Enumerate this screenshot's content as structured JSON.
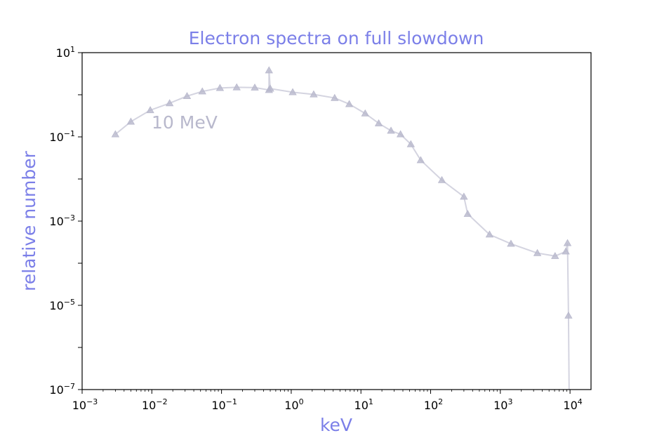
{
  "chart_data": {
    "type": "line",
    "title": "Electron spectra on full slowdown",
    "xlabel": "keV",
    "ylabel": "relative number",
    "xscale": "log",
    "yscale": "log",
    "xlim": [
      0.001,
      20000
    ],
    "ylim": [
      1e-07,
      10
    ],
    "grid": false,
    "marker": "triangle",
    "color": "#b8b8cc",
    "annotation": "10 MeV",
    "x_ticks": [
      {
        "base": "10",
        "exp": "−3",
        "value": 0.001
      },
      {
        "base": "10",
        "exp": "−2",
        "value": 0.01
      },
      {
        "base": "10",
        "exp": "−1",
        "value": 0.1
      },
      {
        "base": "10",
        "exp": "0",
        "value": 1
      },
      {
        "base": "10",
        "exp": "1",
        "value": 10
      },
      {
        "base": "10",
        "exp": "2",
        "value": 100
      },
      {
        "base": "10",
        "exp": "3",
        "value": 1000
      },
      {
        "base": "10",
        "exp": "4",
        "value": 10000
      }
    ],
    "y_ticks": [
      {
        "base": "10",
        "exp": "1",
        "value": 10
      },
      {
        "base": "10",
        "exp": "−1",
        "value": 0.1
      },
      {
        "base": "10",
        "exp": "−3",
        "value": 0.001
      },
      {
        "base": "10",
        "exp": "−5",
        "value": 1e-05
      },
      {
        "base": "10",
        "exp": "−7",
        "value": 1e-07
      }
    ],
    "series": [
      {
        "x": [
          0.003,
          0.005,
          0.0095,
          0.018,
          0.032,
          0.053,
          0.095,
          0.165,
          0.3,
          0.48,
          0.48,
          0.5,
          1.05,
          2.1,
          4.2,
          6.8,
          11.5,
          18,
          27,
          37,
          52,
          72,
          145,
          300,
          340,
          700,
          1420,
          3400,
          6100,
          8700,
          9200,
          9500,
          9700
        ],
        "y": [
          0.115,
          0.23,
          0.43,
          0.63,
          0.93,
          1.2,
          1.45,
          1.5,
          1.48,
          1.3,
          3.8,
          1.4,
          1.15,
          1.02,
          0.84,
          0.6,
          0.36,
          0.21,
          0.14,
          0.115,
          0.067,
          0.028,
          0.0094,
          0.0038,
          0.00148,
          0.00048,
          0.00029,
          0.000174,
          0.000148,
          0.00019,
          0.0003,
          5.7e-06,
          1e-07
        ],
        "markers": [
          true,
          true,
          true,
          true,
          true,
          true,
          true,
          true,
          true,
          true,
          true,
          true,
          true,
          true,
          true,
          true,
          true,
          true,
          true,
          true,
          true,
          true,
          true,
          true,
          true,
          true,
          true,
          true,
          true,
          true,
          true,
          true,
          false
        ]
      }
    ]
  }
}
